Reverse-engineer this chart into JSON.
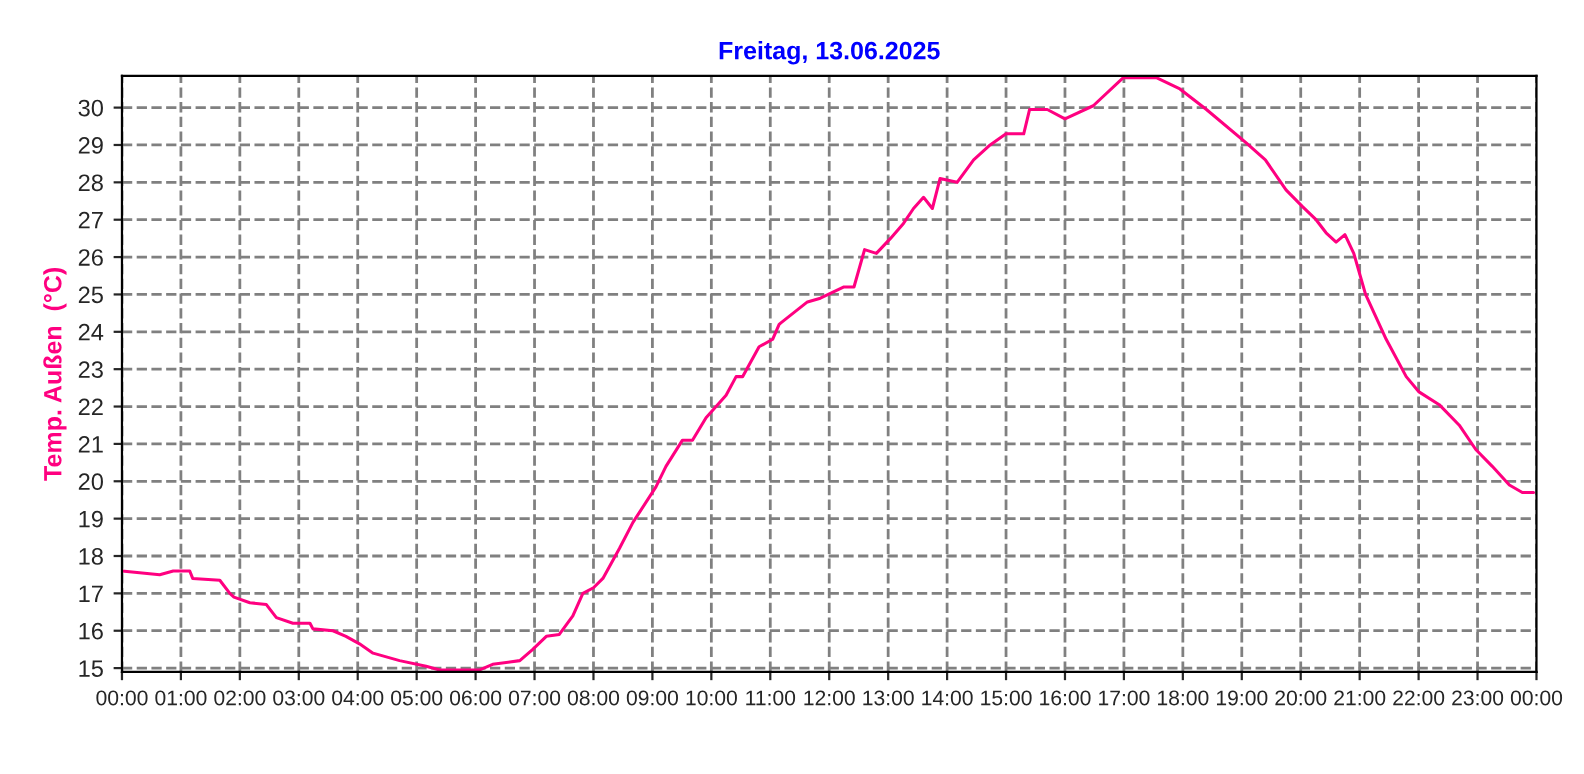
{
  "chart_data": {
    "type": "line",
    "title": "Freitag, 13.06.2025",
    "ylabel": "Temp. Außen  (°C)",
    "x": [
      0,
      0.64,
      0.87,
      1.15,
      1.2,
      1.66,
      1.83,
      1.9,
      2.17,
      2.45,
      2.62,
      2.9,
      3.19,
      3.24,
      3.58,
      3.8,
      4.03,
      4.26,
      4.71,
      5.16,
      5.39,
      5.84,
      6.07,
      6.29,
      6.75,
      6.97,
      7.2,
      7.42,
      7.65,
      7.82,
      8.0,
      8.16,
      8.44,
      8.67,
      9.06,
      9.23,
      9.51,
      9.68,
      9.91,
      10.25,
      10.42,
      10.53,
      10.81,
      11.04,
      11.15,
      11.18,
      11.63,
      11.85,
      12.25,
      12.42,
      12.6,
      12.8,
      13.04,
      13.26,
      13.43,
      13.6,
      13.75,
      13.88,
      14.17,
      14.45,
      14.73,
      15.0,
      15.3,
      15.4,
      15.7,
      16.0,
      16.48,
      16.99,
      17.55,
      17.95,
      18.4,
      19.08,
      19.4,
      19.75,
      20.03,
      20.26,
      20.43,
      20.6,
      20.75,
      20.9,
      21.1,
      21.45,
      21.79,
      22.0,
      22.35,
      22.69,
      22.97,
      23.25,
      23.54,
      23.76,
      23.95
    ],
    "series": [
      {
        "color": "#ff0080",
        "values": [
          17.6,
          17.5,
          17.6,
          17.6,
          17.4,
          17.35,
          17.0,
          16.9,
          16.75,
          16.7,
          16.35,
          16.2,
          16.2,
          16.05,
          16.0,
          15.85,
          15.65,
          15.4,
          15.2,
          15.05,
          14.95,
          14.95,
          14.95,
          15.1,
          15.2,
          15.5,
          15.85,
          15.9,
          16.4,
          17.0,
          17.15,
          17.4,
          18.2,
          18.9,
          19.85,
          20.4,
          21.1,
          21.1,
          21.7,
          22.3,
          22.8,
          22.8,
          23.6,
          23.8,
          24.2,
          24.24,
          24.8,
          24.9,
          25.2,
          25.2,
          26.2,
          26.1,
          26.5,
          26.9,
          27.3,
          27.6,
          27.3,
          28.1,
          28.0,
          28.6,
          29.0,
          29.3,
          29.3,
          29.95,
          29.95,
          29.7,
          30.05,
          30.8,
          30.8,
          30.5,
          29.95,
          29.05,
          28.6,
          27.8,
          27.35,
          27.0,
          26.65,
          26.4,
          26.6,
          26.1,
          25.0,
          23.8,
          22.8,
          22.4,
          22.05,
          21.5,
          20.85,
          20.4,
          19.9,
          19.7,
          19.7
        ]
      }
    ],
    "xlim": [
      0,
      24
    ],
    "ylim": [
      14.9,
      30.85
    ],
    "xticks": [
      {
        "value": 0,
        "label": "00:00"
      },
      {
        "value": 1,
        "label": "01:00"
      },
      {
        "value": 2,
        "label": "02:00"
      },
      {
        "value": 3,
        "label": "03:00"
      },
      {
        "value": 4,
        "label": "04:00"
      },
      {
        "value": 5,
        "label": "05:00"
      },
      {
        "value": 6,
        "label": "06:00"
      },
      {
        "value": 7,
        "label": "07:00"
      },
      {
        "value": 8,
        "label": "08:00"
      },
      {
        "value": 9,
        "label": "09:00"
      },
      {
        "value": 10,
        "label": "10:00"
      },
      {
        "value": 11,
        "label": "11:00"
      },
      {
        "value": 12,
        "label": "12:00"
      },
      {
        "value": 13,
        "label": "13:00"
      },
      {
        "value": 14,
        "label": "14:00"
      },
      {
        "value": 15,
        "label": "15:00"
      },
      {
        "value": 16,
        "label": "16:00"
      },
      {
        "value": 17,
        "label": "17:00"
      },
      {
        "value": 18,
        "label": "18:00"
      },
      {
        "value": 19,
        "label": "19:00"
      },
      {
        "value": 20,
        "label": "20:00"
      },
      {
        "value": 21,
        "label": "21:00"
      },
      {
        "value": 22,
        "label": "22:00"
      },
      {
        "value": 23,
        "label": "23:00"
      },
      {
        "value": 24,
        "label": "00:00"
      }
    ],
    "yticks": [
      15,
      16,
      17,
      18,
      19,
      20,
      21,
      22,
      23,
      24,
      25,
      26,
      27,
      28,
      29,
      30
    ],
    "grid": true,
    "marker": "none",
    "line_style": "solid"
  }
}
